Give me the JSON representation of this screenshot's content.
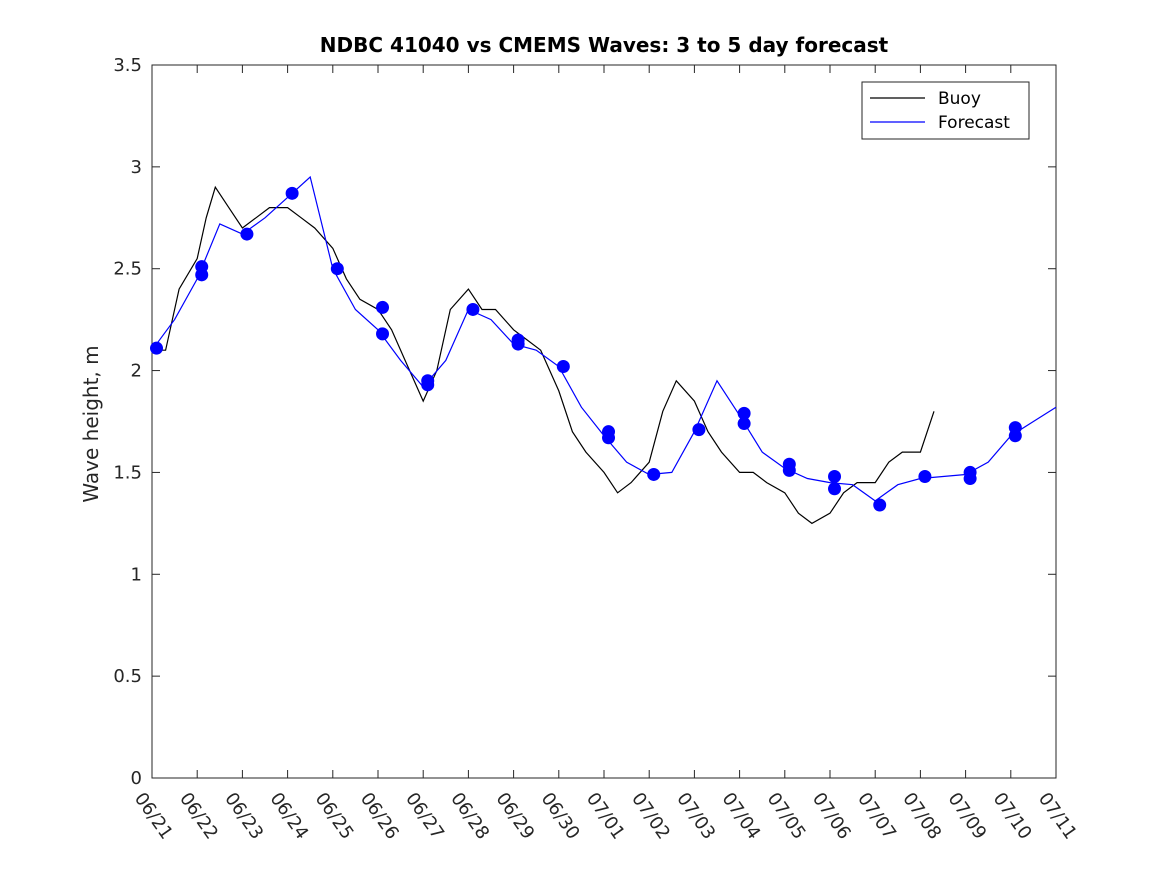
{
  "chart_data": {
    "type": "line",
    "title": "NDBC 41040 vs CMEMS Waves: 3 to 5 day forecast",
    "xlabel": "",
    "ylabel": "Wave height, m",
    "xlim": [
      "06/21",
      "07/11"
    ],
    "ylim": [
      0,
      3.5
    ],
    "grid": false,
    "legend_position": "top-right",
    "x_tick_labels": [
      "06/21",
      "06/22",
      "06/23",
      "06/24",
      "06/25",
      "06/26",
      "06/27",
      "06/28",
      "06/29",
      "06/30",
      "07/01",
      "07/02",
      "07/03",
      "07/04",
      "07/05",
      "07/06",
      "07/07",
      "07/08",
      "07/09",
      "07/10",
      "07/11"
    ],
    "y_tick_labels": [
      "0",
      "0.5",
      "1",
      "1.5",
      "2",
      "2.5",
      "3",
      "3.5"
    ],
    "y_ticks": [
      0,
      0.5,
      1,
      1.5,
      2,
      2.5,
      3,
      3.5
    ],
    "colors": {
      "buoy": "#000000",
      "forecast": "#0000ff"
    },
    "series": [
      {
        "name": "Buoy",
        "style": "line",
        "x": [
          0.0,
          0.3,
          0.6,
          1.0,
          1.2,
          1.4,
          1.7,
          2.0,
          2.3,
          2.6,
          3.0,
          3.3,
          3.6,
          4.0,
          4.3,
          4.6,
          5.0,
          5.3,
          5.6,
          6.0,
          6.3,
          6.6,
          7.0,
          7.3,
          7.6,
          8.0,
          8.3,
          8.6,
          9.0,
          9.3,
          9.6,
          10.0,
          10.3,
          10.6,
          11.0,
          11.3,
          11.6,
          12.0,
          12.3,
          12.6,
          13.0,
          13.3,
          13.6,
          14.0,
          14.3,
          14.6,
          15.0,
          15.3,
          15.6,
          16.0,
          16.3,
          16.6,
          17.0,
          17.3,
          17.6,
          18.0,
          18.3,
          18.6,
          19.0,
          19.3,
          19.6,
          20.0
        ],
        "y": [
          2.1,
          2.1,
          2.4,
          2.55,
          2.75,
          2.9,
          2.8,
          2.7,
          2.75,
          2.8,
          2.8,
          2.75,
          2.7,
          2.6,
          2.45,
          2.35,
          2.3,
          2.2,
          2.05,
          1.85,
          2.0,
          2.3,
          2.4,
          2.3,
          2.3,
          2.2,
          2.15,
          2.1,
          1.9,
          1.7,
          1.6,
          1.5,
          1.4,
          1.45,
          1.55,
          1.8,
          1.95,
          1.85,
          1.7,
          1.6,
          1.5,
          1.5,
          1.45,
          1.4,
          1.3,
          1.25,
          1.3,
          1.4,
          1.45,
          1.45,
          1.55,
          1.6,
          1.6,
          1.8,
          null,
          null,
          null,
          null,
          null,
          null,
          null,
          null
        ]
      },
      {
        "name": "Forecast",
        "style": "line",
        "x": [
          0.0,
          0.5,
          1.0,
          1.5,
          2.0,
          2.5,
          3.0,
          3.5,
          4.0,
          4.5,
          5.0,
          5.5,
          6.0,
          6.5,
          7.0,
          7.5,
          8.0,
          8.5,
          9.0,
          9.5,
          10.0,
          10.5,
          11.0,
          11.5,
          12.0,
          12.5,
          13.0,
          13.5,
          14.0,
          14.5,
          15.0,
          15.5,
          16.0,
          16.5,
          17.0,
          17.5,
          18.0,
          18.5,
          19.0,
          19.5,
          20.0
        ],
        "y": [
          2.1,
          2.25,
          2.45,
          2.72,
          2.67,
          2.75,
          2.85,
          2.95,
          2.5,
          2.3,
          2.2,
          2.05,
          1.92,
          2.05,
          2.3,
          2.25,
          2.13,
          2.1,
          2.02,
          1.82,
          1.68,
          1.55,
          1.49,
          1.5,
          1.7,
          1.95,
          1.78,
          1.6,
          1.52,
          1.47,
          1.45,
          1.44,
          1.36,
          1.44,
          1.47,
          1.48,
          1.49,
          1.55,
          1.68,
          1.75,
          1.82
        ]
      }
    ],
    "markers": {
      "x": [
        0.1,
        1.1,
        1.1,
        2.1,
        3.1,
        4.1,
        5.1,
        5.1,
        6.1,
        6.1,
        7.1,
        8.1,
        8.1,
        9.1,
        10.1,
        10.1,
        11.1,
        12.1,
        13.1,
        13.1,
        14.1,
        14.1,
        15.1,
        15.1,
        16.1,
        17.1,
        18.1,
        18.1,
        19.1,
        19.1
      ],
      "y": [
        2.11,
        2.51,
        2.47,
        2.67,
        2.87,
        2.5,
        2.31,
        2.18,
        1.95,
        1.93,
        2.3,
        2.15,
        2.13,
        2.02,
        1.7,
        1.67,
        1.49,
        1.71,
        1.79,
        1.74,
        1.54,
        1.51,
        1.48,
        1.42,
        1.34,
        1.48,
        1.5,
        1.47,
        1.72,
        1.68
      ]
    }
  }
}
